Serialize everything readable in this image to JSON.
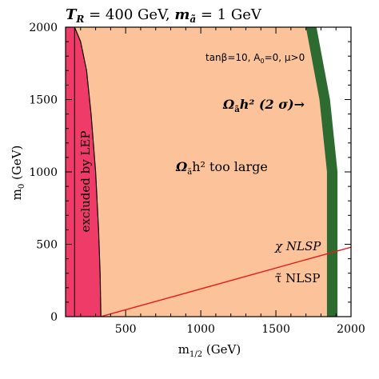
{
  "chart_data": {
    "type": "area",
    "title": {
      "t_label": "T",
      "t_sub": "R",
      "t_value": " = 400 GeV, ",
      "m_label": "m",
      "m_sub": "ã",
      "m_value": " = 1 GeV"
    },
    "xlabel": {
      "main": "m",
      "sub": "1/2",
      "unit": " (GeV)"
    },
    "ylabel": {
      "main": "m",
      "sub": "0",
      "unit": " (GeV)"
    },
    "xlim": [
      100,
      2000
    ],
    "ylim": [
      0,
      2000
    ],
    "x_ticks": [
      500,
      1000,
      1500,
      2000
    ],
    "y_ticks": [
      0,
      500,
      1000,
      1500,
      2000
    ],
    "x_tick_labels": [
      "500",
      "1000",
      "1500",
      "2000"
    ],
    "y_tick_labels": [
      "0",
      "500",
      "1000",
      "1500",
      "2000"
    ],
    "annotations": {
      "params": "tanβ=10, A",
      "params_sub": "0",
      "params_tail": "=0,  μ>0",
      "relic_band": "Ω",
      "relic_band_sub": "ã",
      "relic_band_tail": "h² (2 σ)",
      "relic_band_arrow": "→",
      "too_large": "Ω",
      "too_large_sub": "ã",
      "too_large_tail": "h² too large",
      "lep": "excluded by LEP",
      "chi_nlsp": "χ NLSP",
      "stau_nlsp": "τ̃ NLSP"
    },
    "regions": {
      "lep_excluded": {
        "color": "#ef3b68",
        "boundary": [
          [
            100,
            2000
          ],
          [
            160,
            2000
          ],
          [
            200,
            1900
          ],
          [
            240,
            1700
          ],
          [
            270,
            1400
          ],
          [
            300,
            1000
          ],
          [
            320,
            600
          ],
          [
            330,
            300
          ],
          [
            335,
            0
          ],
          [
            100,
            0
          ]
        ]
      },
      "too_large": {
        "color": "#fcc39a",
        "boundary": [
          [
            160,
            2000
          ],
          [
            1700,
            2000
          ],
          [
            1790,
            1500
          ],
          [
            1840,
            1000
          ],
          [
            1840,
            500
          ],
          [
            1840,
            0
          ],
          [
            335,
            0
          ],
          [
            330,
            300
          ],
          [
            320,
            600
          ],
          [
            300,
            1000
          ],
          [
            270,
            1400
          ],
          [
            240,
            1700
          ],
          [
            200,
            1900
          ]
        ]
      },
      "relic_band": {
        "color": "#2e6b30",
        "left_edge": [
          [
            1700,
            2000
          ],
          [
            1790,
            1500
          ],
          [
            1840,
            1000
          ],
          [
            1840,
            500
          ],
          [
            1840,
            0
          ]
        ],
        "right_edge": [
          [
            1770,
            2000
          ],
          [
            1860,
            1500
          ],
          [
            1910,
            1000
          ],
          [
            1910,
            500
          ],
          [
            1910,
            0
          ]
        ]
      }
    },
    "nlsp_boundary": {
      "color": "#e81919",
      "points": [
        [
          335,
          0
        ],
        [
          2000,
          480
        ]
      ]
    }
  }
}
